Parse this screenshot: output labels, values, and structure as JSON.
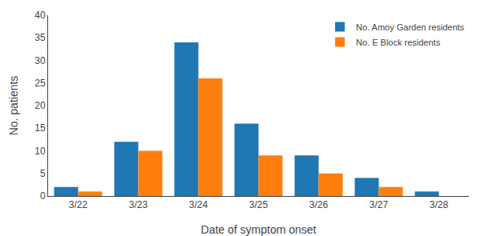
{
  "chart_data": {
    "type": "bar",
    "categories": [
      "3/22",
      "3/23",
      "3/24",
      "3/25",
      "3/26",
      "3/27",
      "3/28"
    ],
    "series": [
      {
        "name": "No. Amoy Garden residents",
        "values": [
          2,
          12,
          34,
          16,
          9,
          4,
          1
        ]
      },
      {
        "name": "No. E Block residents",
        "values": [
          1,
          10,
          26,
          9,
          5,
          2,
          0
        ]
      }
    ],
    "xlabel": "Date of symptom onset",
    "ylabel": "No. patients",
    "ylim": [
      0,
      40
    ],
    "yticks": [
      0,
      5,
      10,
      15,
      20,
      25,
      30,
      35,
      40
    ],
    "grid": false,
    "legend": "upper right"
  }
}
